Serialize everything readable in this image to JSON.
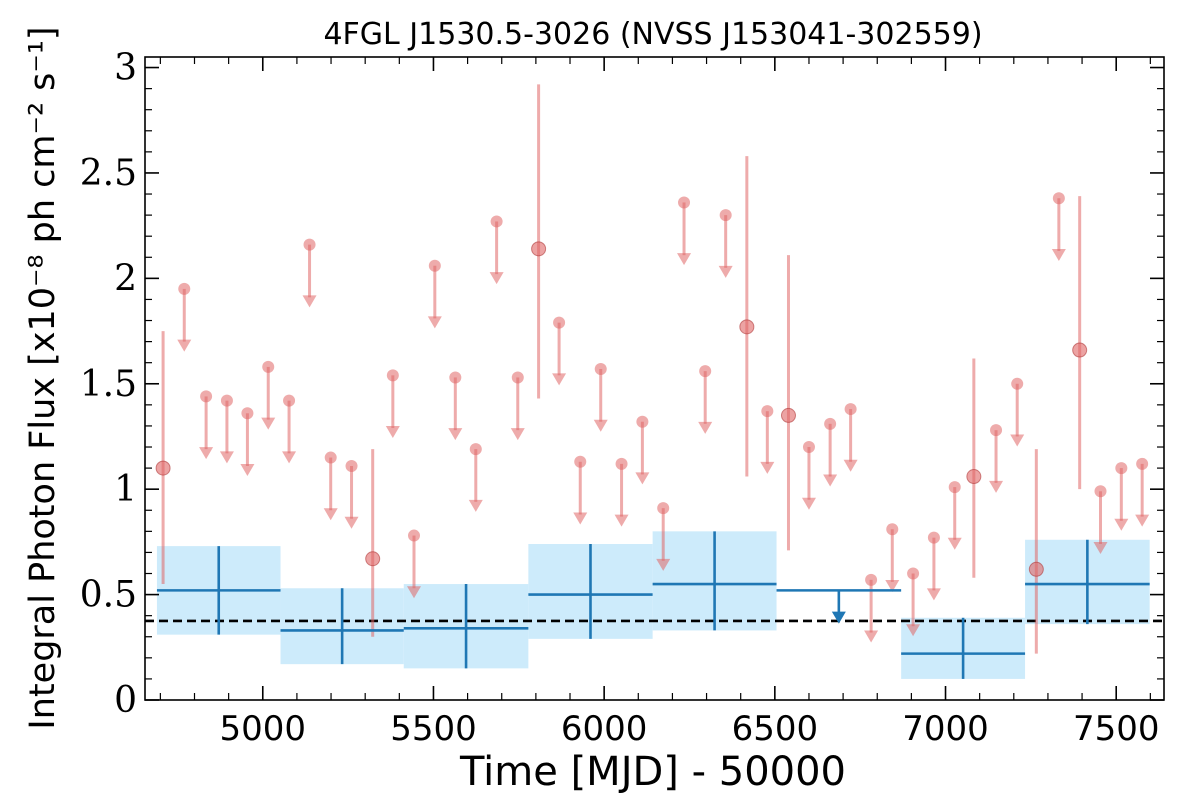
{
  "chart_data": {
    "type": "scatter",
    "title": "4FGL J1530.5-3026 (NVSS J153041-302559)",
    "xlabel": "Time [MJD] - 50000",
    "ylabel": "Integral Photon Flux [x10⁻⁸ ph cm⁻² s⁻¹]",
    "xlim": [
      4655,
      7640
    ],
    "ylim": [
      0,
      3.05
    ],
    "xticks": [
      5000,
      5500,
      6000,
      6500,
      7000,
      7500
    ],
    "xtick_labels": [
      "5000",
      "5500",
      "6000",
      "6500",
      "7000",
      "7500"
    ],
    "yticks": [
      0,
      0.5,
      1,
      1.5,
      2,
      2.5,
      3
    ],
    "ytick_labels": [
      "0",
      "0.5",
      "1",
      "1.5",
      "2",
      "2.5",
      "3"
    ],
    "reference_line": {
      "y": 0.375,
      "style": "dashed"
    },
    "colors": {
      "short_points": "#e06666",
      "long_bins": "#1f77b4",
      "bin_band": "#cdebfb",
      "reference": "#000000"
    },
    "series": [
      {
        "binning": "short",
        "detections": [
          {
            "x": 4708,
            "y": 1.1,
            "ylo": 0.55,
            "yhi": 1.75
          },
          {
            "x": 5322,
            "y": 0.67,
            "ylo": 0.3,
            "yhi": 1.19
          },
          {
            "x": 5808,
            "y": 2.14,
            "ylo": 1.43,
            "yhi": 2.92
          },
          {
            "x": 6418,
            "y": 1.77,
            "ylo": 1.06,
            "yhi": 2.58
          },
          {
            "x": 6540,
            "y": 1.35,
            "ylo": 0.71,
            "yhi": 2.11
          },
          {
            "x": 7083,
            "y": 1.06,
            "ylo": 0.58,
            "yhi": 1.62
          },
          {
            "x": 7266,
            "y": 0.62,
            "ylo": 0.22,
            "yhi": 1.19
          },
          {
            "x": 7393,
            "y": 1.66,
            "ylo": 1.0,
            "yhi": 2.39
          }
        ],
        "upper_limits": [
          {
            "x": 4770,
            "y": 1.95
          },
          {
            "x": 4834,
            "y": 1.44
          },
          {
            "x": 4895,
            "y": 1.42
          },
          {
            "x": 4955,
            "y": 1.36
          },
          {
            "x": 5016,
            "y": 1.58
          },
          {
            "x": 5077,
            "y": 1.42
          },
          {
            "x": 5137,
            "y": 2.16
          },
          {
            "x": 5199,
            "y": 1.15
          },
          {
            "x": 5260,
            "y": 1.11
          },
          {
            "x": 5381,
            "y": 1.54
          },
          {
            "x": 5443,
            "y": 0.78
          },
          {
            "x": 5504,
            "y": 2.06
          },
          {
            "x": 5564,
            "y": 1.53
          },
          {
            "x": 5624,
            "y": 1.19
          },
          {
            "x": 5685,
            "y": 2.27
          },
          {
            "x": 5747,
            "y": 1.53
          },
          {
            "x": 5868,
            "y": 1.79
          },
          {
            "x": 5930,
            "y": 1.13
          },
          {
            "x": 5990,
            "y": 1.57
          },
          {
            "x": 6051,
            "y": 1.12
          },
          {
            "x": 6112,
            "y": 1.32
          },
          {
            "x": 6173,
            "y": 0.91
          },
          {
            "x": 6234,
            "y": 2.36
          },
          {
            "x": 6296,
            "y": 1.56
          },
          {
            "x": 6356,
            "y": 2.3
          },
          {
            "x": 6478,
            "y": 1.37
          },
          {
            "x": 6600,
            "y": 1.2
          },
          {
            "x": 6662,
            "y": 1.31
          },
          {
            "x": 6722,
            "y": 1.38
          },
          {
            "x": 6782,
            "y": 0.57
          },
          {
            "x": 6844,
            "y": 0.81
          },
          {
            "x": 6905,
            "y": 0.6
          },
          {
            "x": 6966,
            "y": 0.77
          },
          {
            "x": 7027,
            "y": 1.01
          },
          {
            "x": 7148,
            "y": 1.28
          },
          {
            "x": 7210,
            "y": 1.5
          },
          {
            "x": 7332,
            "y": 2.38
          },
          {
            "x": 7454,
            "y": 0.99
          },
          {
            "x": 7515,
            "y": 1.1
          },
          {
            "x": 7576,
            "y": 1.12
          }
        ]
      },
      {
        "binning": "long",
        "bins": [
          {
            "x0": 4690,
            "x1": 5052,
            "y": 0.52,
            "ylo": 0.31,
            "yhi": 0.73
          },
          {
            "x0": 5052,
            "x1": 5413,
            "y": 0.33,
            "ylo": 0.17,
            "yhi": 0.53
          },
          {
            "x0": 5413,
            "x1": 5778,
            "y": 0.34,
            "ylo": 0.15,
            "yhi": 0.55
          },
          {
            "x0": 5778,
            "x1": 6142,
            "y": 0.5,
            "ylo": 0.29,
            "yhi": 0.74
          },
          {
            "x0": 6142,
            "x1": 6505,
            "y": 0.55,
            "ylo": 0.33,
            "yhi": 0.8
          },
          {
            "x0": 6870,
            "x1": 7233,
            "y": 0.22,
            "ylo": 0.1,
            "yhi": 0.39
          },
          {
            "x0": 7233,
            "x1": 7598,
            "y": 0.55,
            "ylo": 0.36,
            "yhi": 0.76
          }
        ],
        "upper_limits": [
          {
            "x0": 6505,
            "x1": 6870,
            "y": 0.52
          }
        ]
      }
    ]
  }
}
